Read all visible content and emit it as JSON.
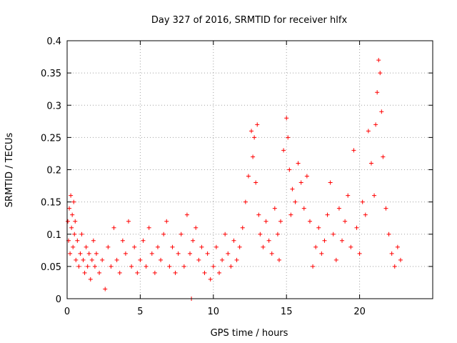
{
  "chart_data": {
    "type": "scatter",
    "title": "Day 327 of 2016, SRMTID for receiver hlfx",
    "xlabel": "GPS time / hours",
    "ylabel": "SRMTID / TECUs",
    "xlim": [
      0,
      25
    ],
    "ylim": [
      0,
      0.4
    ],
    "xticks": [
      0,
      5,
      10,
      15,
      20
    ],
    "xtick_labels": [
      "0",
      "5",
      "10",
      "15",
      "20"
    ],
    "yticks": [
      0,
      0.05,
      0.1,
      0.15,
      0.2,
      0.25,
      0.3,
      0.35,
      0.4
    ],
    "ytick_labels": [
      "0",
      "0.05",
      "0.1",
      "0.15",
      "0.2",
      "0.25",
      "0.3",
      "0.35",
      "0.4"
    ],
    "grid": true,
    "marker": "+",
    "color": "#ff0000",
    "series": [
      {
        "name": "SRMTID",
        "points": [
          [
            0.05,
            0.12
          ],
          [
            0.1,
            0.09
          ],
          [
            0.15,
            0.14
          ],
          [
            0.2,
            0.07
          ],
          [
            0.25,
            0.16
          ],
          [
            0.3,
            0.11
          ],
          [
            0.35,
            0.13
          ],
          [
            0.4,
            0.08
          ],
          [
            0.45,
            0.15
          ],
          [
            0.5,
            0.1
          ],
          [
            0.55,
            0.12
          ],
          [
            0.6,
            0.06
          ],
          [
            0.7,
            0.09
          ],
          [
            0.8,
            0.05
          ],
          [
            0.9,
            0.07
          ],
          [
            1.0,
            0.1
          ],
          [
            1.1,
            0.06
          ],
          [
            1.2,
            0.04
          ],
          [
            1.3,
            0.08
          ],
          [
            1.4,
            0.05
          ],
          [
            1.5,
            0.07
          ],
          [
            1.6,
            0.03
          ],
          [
            1.7,
            0.06
          ],
          [
            1.8,
            0.09
          ],
          [
            1.9,
            0.05
          ],
          [
            2.0,
            0.07
          ],
          [
            2.2,
            0.04
          ],
          [
            2.4,
            0.06
          ],
          [
            2.6,
            0.015
          ],
          [
            2.8,
            0.08
          ],
          [
            3.0,
            0.05
          ],
          [
            3.2,
            0.11
          ],
          [
            3.4,
            0.06
          ],
          [
            3.6,
            0.04
          ],
          [
            3.8,
            0.09
          ],
          [
            4.0,
            0.07
          ],
          [
            4.2,
            0.12
          ],
          [
            4.4,
            0.05
          ],
          [
            4.6,
            0.08
          ],
          [
            4.8,
            0.04
          ],
          [
            5.0,
            0.06
          ],
          [
            5.2,
            0.09
          ],
          [
            5.4,
            0.05
          ],
          [
            5.6,
            0.11
          ],
          [
            5.8,
            0.07
          ],
          [
            6.0,
            0.04
          ],
          [
            6.2,
            0.08
          ],
          [
            6.4,
            0.06
          ],
          [
            6.6,
            0.1
          ],
          [
            6.8,
            0.12
          ],
          [
            7.0,
            0.05
          ],
          [
            7.2,
            0.08
          ],
          [
            7.4,
            0.04
          ],
          [
            7.6,
            0.07
          ],
          [
            7.8,
            0.1
          ],
          [
            8.0,
            0.05
          ],
          [
            8.2,
            0.13
          ],
          [
            8.4,
            0.07
          ],
          [
            8.5,
            0.0
          ],
          [
            8.6,
            0.09
          ],
          [
            8.8,
            0.11
          ],
          [
            9.0,
            0.06
          ],
          [
            9.2,
            0.08
          ],
          [
            9.4,
            0.04
          ],
          [
            9.6,
            0.07
          ],
          [
            9.8,
            0.03
          ],
          [
            10.0,
            0.05
          ],
          [
            10.2,
            0.08
          ],
          [
            10.4,
            0.04
          ],
          [
            10.6,
            0.06
          ],
          [
            10.8,
            0.1
          ],
          [
            11.0,
            0.07
          ],
          [
            11.2,
            0.05
          ],
          [
            11.4,
            0.09
          ],
          [
            11.6,
            0.06
          ],
          [
            11.8,
            0.08
          ],
          [
            12.0,
            0.11
          ],
          [
            12.2,
            0.15
          ],
          [
            12.4,
            0.19
          ],
          [
            12.6,
            0.26
          ],
          [
            12.7,
            0.22
          ],
          [
            12.8,
            0.25
          ],
          [
            12.9,
            0.18
          ],
          [
            13.0,
            0.27
          ],
          [
            13.1,
            0.13
          ],
          [
            13.2,
            0.1
          ],
          [
            13.4,
            0.08
          ],
          [
            13.6,
            0.12
          ],
          [
            13.8,
            0.09
          ],
          [
            14.0,
            0.07
          ],
          [
            14.2,
            0.14
          ],
          [
            14.4,
            0.1
          ],
          [
            14.5,
            0.06
          ],
          [
            14.6,
            0.12
          ],
          [
            14.8,
            0.23
          ],
          [
            15.0,
            0.28
          ],
          [
            15.1,
            0.25
          ],
          [
            15.2,
            0.2
          ],
          [
            15.3,
            0.13
          ],
          [
            15.4,
            0.17
          ],
          [
            15.6,
            0.15
          ],
          [
            15.8,
            0.21
          ],
          [
            16.0,
            0.18
          ],
          [
            16.2,
            0.14
          ],
          [
            16.4,
            0.19
          ],
          [
            16.6,
            0.12
          ],
          [
            16.8,
            0.05
          ],
          [
            17.0,
            0.08
          ],
          [
            17.2,
            0.11
          ],
          [
            17.4,
            0.07
          ],
          [
            17.6,
            0.09
          ],
          [
            17.8,
            0.13
          ],
          [
            18.0,
            0.18
          ],
          [
            18.2,
            0.1
          ],
          [
            18.4,
            0.06
          ],
          [
            18.6,
            0.14
          ],
          [
            18.8,
            0.09
          ],
          [
            19.0,
            0.12
          ],
          [
            19.2,
            0.16
          ],
          [
            19.4,
            0.08
          ],
          [
            19.6,
            0.23
          ],
          [
            19.8,
            0.11
          ],
          [
            20.0,
            0.07
          ],
          [
            20.2,
            0.15
          ],
          [
            20.4,
            0.13
          ],
          [
            20.6,
            0.26
          ],
          [
            20.8,
            0.21
          ],
          [
            21.0,
            0.16
          ],
          [
            21.1,
            0.27
          ],
          [
            21.2,
            0.32
          ],
          [
            21.3,
            0.37
          ],
          [
            21.4,
            0.35
          ],
          [
            21.5,
            0.29
          ],
          [
            21.6,
            0.22
          ],
          [
            21.8,
            0.14
          ],
          [
            22.0,
            0.1
          ],
          [
            22.2,
            0.07
          ],
          [
            22.4,
            0.05
          ],
          [
            22.6,
            0.08
          ],
          [
            22.8,
            0.06
          ]
        ]
      }
    ]
  }
}
